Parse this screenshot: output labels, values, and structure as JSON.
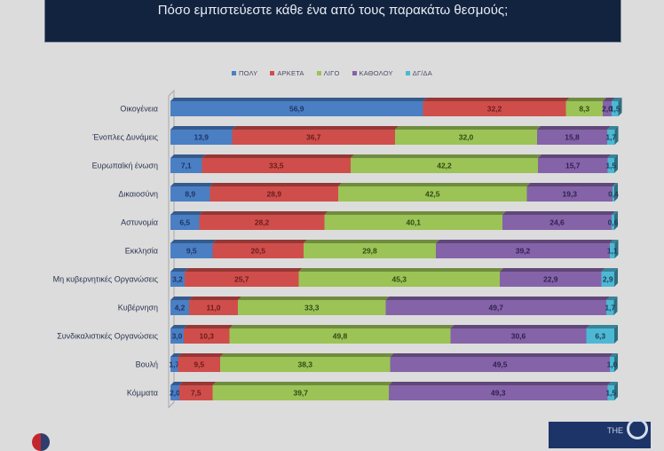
{
  "title": "Πόσο εμπιστεύεστε κάθε ένα από τους παρακάτω θεσμούς;",
  "chart_data": {
    "type": "bar",
    "orientation": "horizontal",
    "stacked": true,
    "percent_stacked": true,
    "title": "Πόσο εμπιστεύεστε κάθε ένα από τους παρακάτω θεσμούς;",
    "xlabel": "",
    "ylabel": "",
    "xlim": [
      0,
      100
    ],
    "grid": false,
    "legend_position": "top",
    "categories": [
      "Οικογένεια",
      "Ένοπλες Δυνάμεις",
      "Ευρωπαϊκή ένωση",
      "Δικαιοσύνη",
      "Αστυνομία",
      "Εκκλησία",
      "Μη κυβερνητικές Οργανώσεις",
      "Κυβέρνηση",
      "Συνδικαλιστικές Οργανώσεις",
      "Βουλή",
      "Κόμματα"
    ],
    "series": [
      {
        "name": "ΠΟΛΥ",
        "color": "#4a7fc4",
        "label_color": "#1f3566",
        "values": [
          56.9,
          13.9,
          7.1,
          8.9,
          6.5,
          9.5,
          3.2,
          4.2,
          3.0,
          1.7,
          2.0
        ],
        "labels": [
          "56,9",
          "13,9",
          "7,1",
          "8,9",
          "6,5",
          "9,5",
          "3,2",
          "4,2",
          "3,0",
          "1,7",
          "2,0"
        ]
      },
      {
        "name": "ΑΡΚΕΤΑ",
        "color": "#cf4e4b",
        "label_color": "#6b1c1c",
        "values": [
          32.2,
          36.7,
          33.5,
          28.9,
          28.2,
          20.5,
          25.7,
          11.0,
          10.3,
          9.5,
          7.5
        ],
        "labels": [
          "32,2",
          "36,7",
          "33,5",
          "28,9",
          "28,2",
          "20,5",
          "25,7",
          "11,0",
          "10,3",
          "9,5",
          "7,5"
        ]
      },
      {
        "name": "ΛΙΓΟ",
        "color": "#9cc356",
        "label_color": "#2f4a14",
        "values": [
          8.3,
          32.0,
          42.2,
          42.5,
          40.1,
          29.8,
          45.3,
          33.3,
          49.8,
          38.3,
          39.7
        ],
        "labels": [
          "8,3",
          "32,0",
          "42,2",
          "42,5",
          "40,1",
          "29,8",
          "45,3",
          "33,3",
          "49,8",
          "38,3",
          "39,7"
        ]
      },
      {
        "name": "ΚΑΘΟΛΟΥ",
        "color": "#8563a8",
        "label_color": "#2f2152",
        "values": [
          2.0,
          15.8,
          15.7,
          19.3,
          24.6,
          39.2,
          22.9,
          49.7,
          30.6,
          49.5,
          49.3
        ],
        "labels": [
          "2,0",
          "15,8",
          "15,7",
          "19,3",
          "24,6",
          "39,2",
          "22,9",
          "49,7",
          "30,6",
          "49,5",
          "49,3"
        ]
      },
      {
        "name": "ΔΓ/ΔΑ",
        "color": "#4db8d3",
        "label_color": "#1b3d5a",
        "values": [
          1.5,
          1.7,
          1.5,
          0.4,
          0.6,
          1.1,
          2.9,
          1.7,
          6.3,
          1.0,
          1.5
        ],
        "labels": [
          "1,5",
          "1,7",
          "1,5",
          "0,4",
          "0,6",
          "1,1",
          "2,9",
          "1,7",
          "6,3",
          "1,0",
          "1,5"
        ]
      }
    ]
  }
}
